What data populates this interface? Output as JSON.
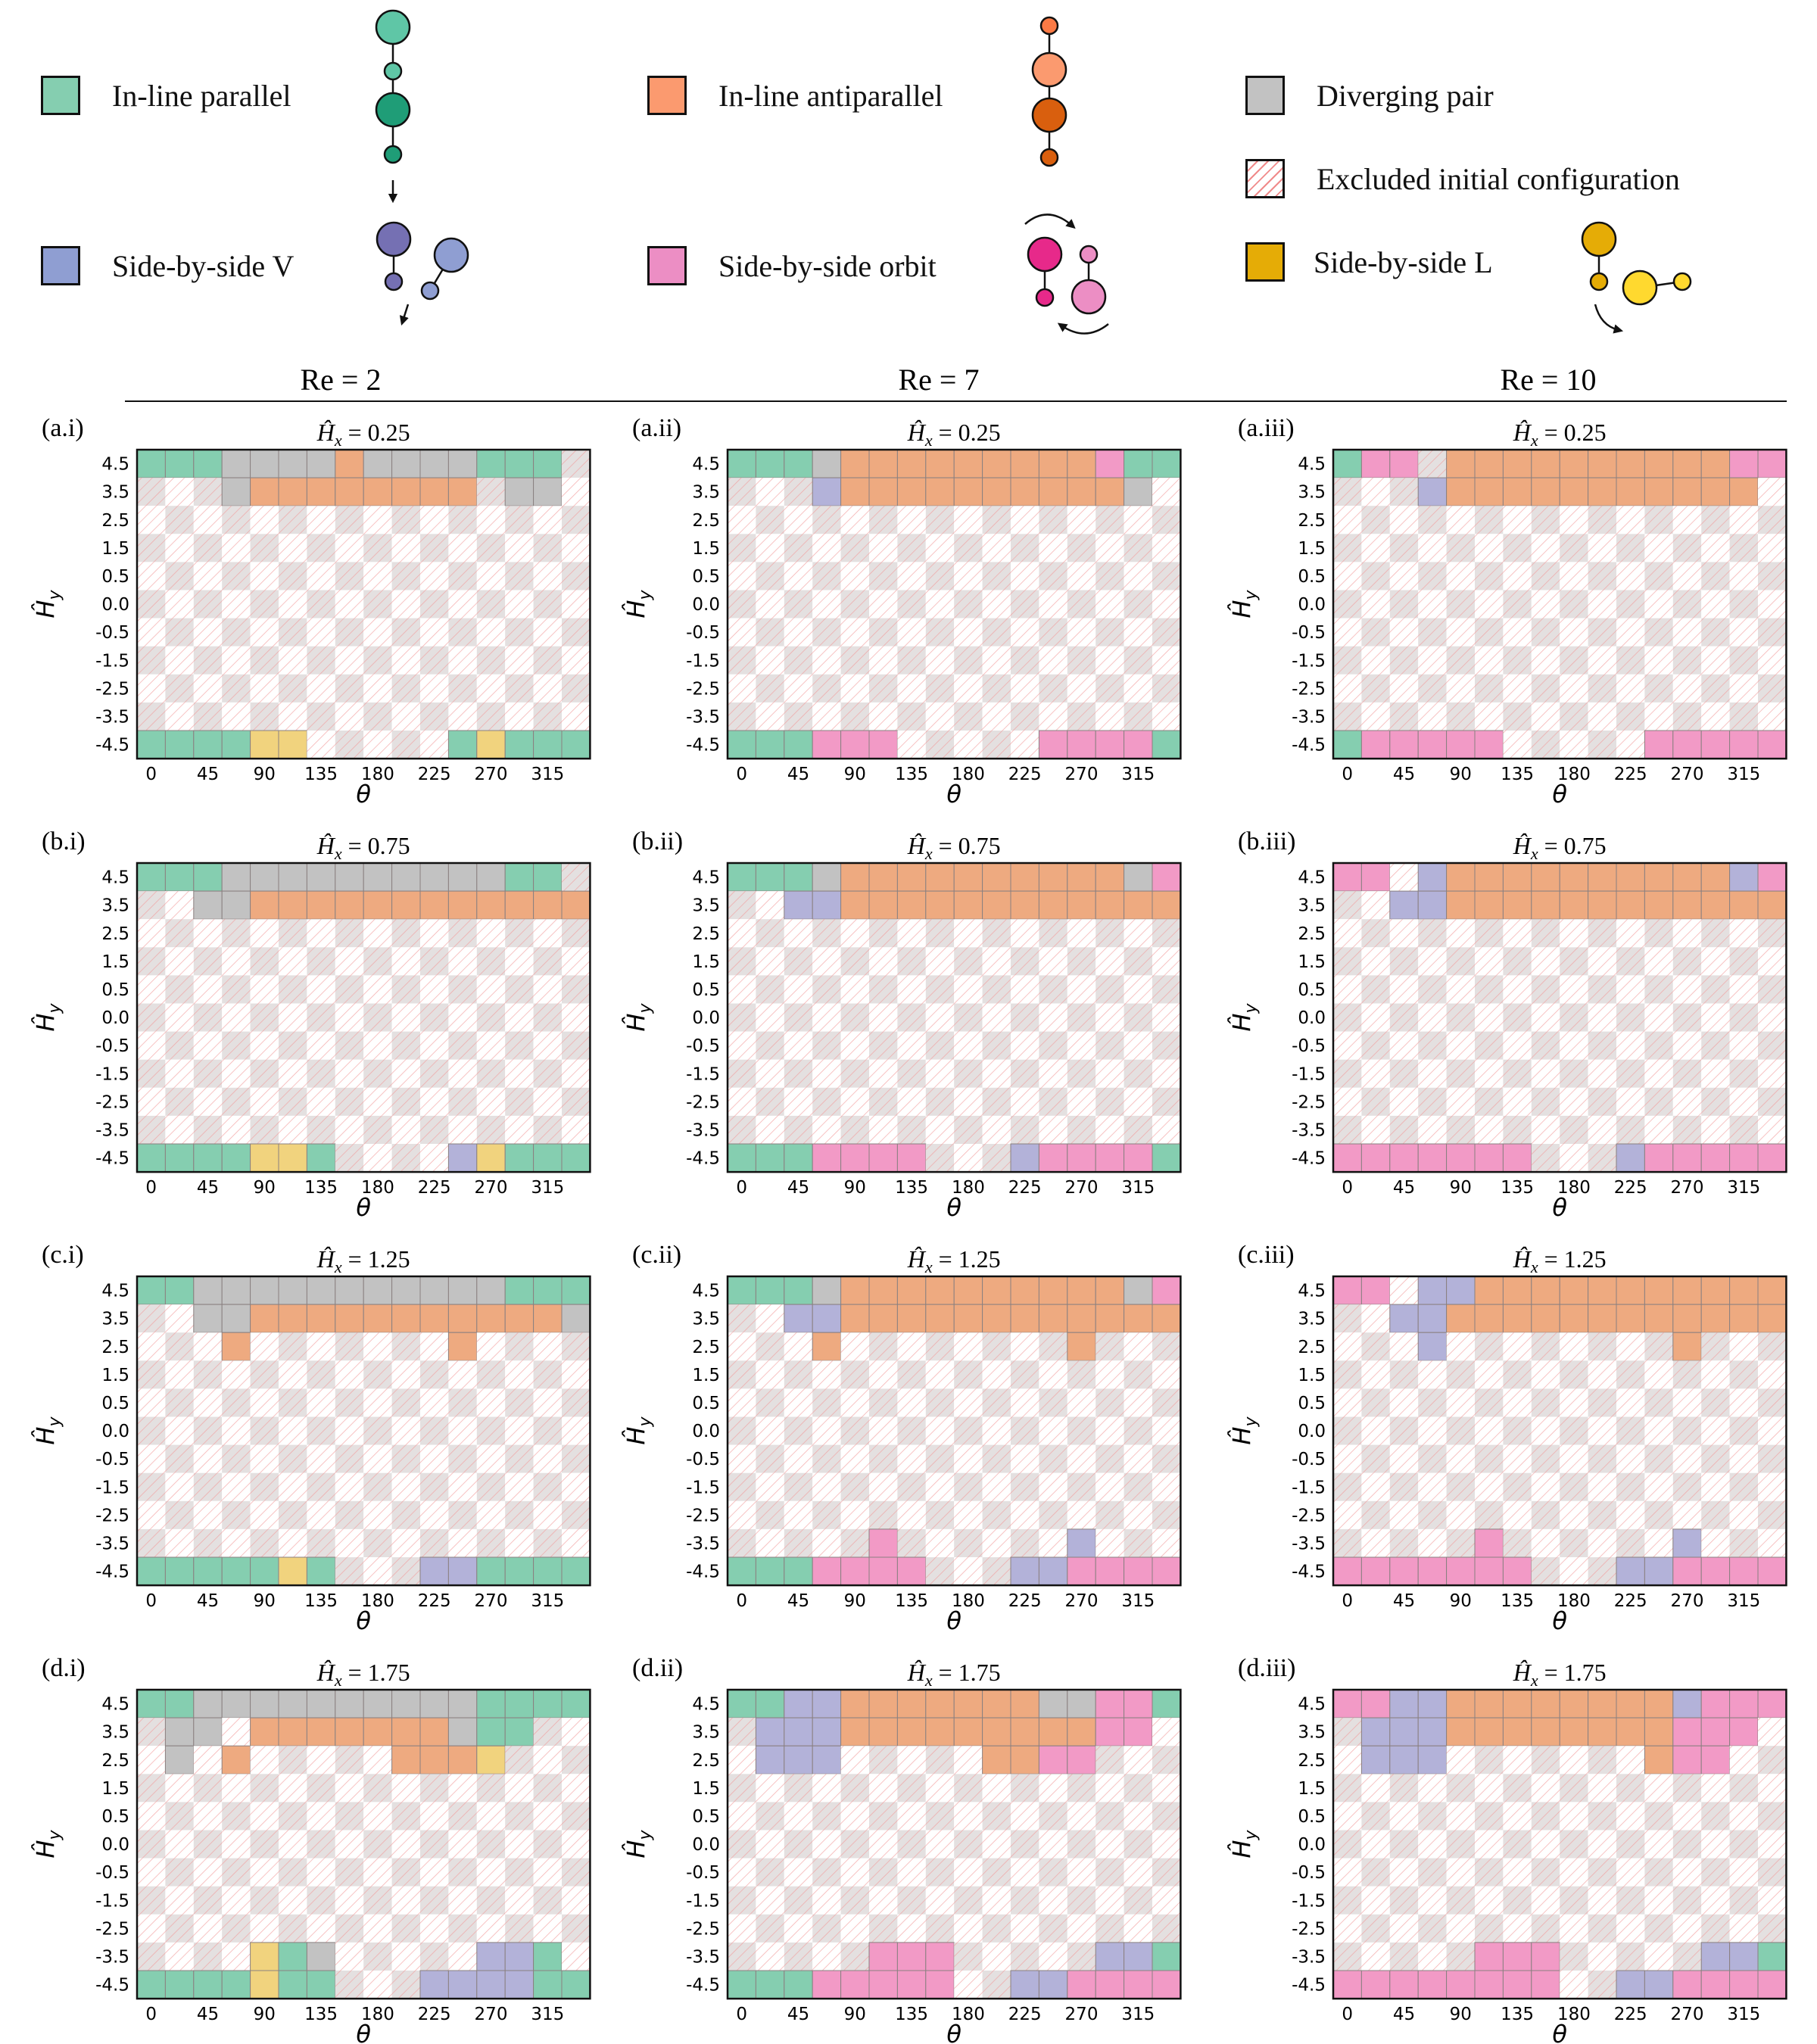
{
  "legend": [
    {
      "key": "P",
      "label": "In-line parallel",
      "color": "#85ceb0"
    },
    {
      "key": "A",
      "label": "In-line antiparallel",
      "color": "#eeaa80"
    },
    {
      "key": "D",
      "label": "Diverging pair",
      "color": "#c2c2c2"
    },
    {
      "key": "X",
      "label": "Excluded initial configuration",
      "color": "#f08a8a"
    },
    {
      "key": "V",
      "label": "Side-by-side V",
      "color": "#b3b2d9"
    },
    {
      "key": "O",
      "label": "Side-by-side orbit",
      "color": "#f29ac6"
    },
    {
      "key": "L",
      "label": "Side-by-side L",
      "color": "#f1d37e"
    }
  ],
  "columns": [
    "Re = 2",
    "Re = 7",
    "Re = 10"
  ],
  "row_titles": [
    "Ĥ_x = 0.25",
    "Ĥ_x = 0.75",
    "Ĥ_x = 1.25",
    "Ĥ_x = 1.75"
  ],
  "panel_labels": [
    [
      "(a.i)",
      "(a.ii)",
      "(a.iii)"
    ],
    [
      "(b.i)",
      "(b.ii)",
      "(b.iii)"
    ],
    [
      "(c.i)",
      "(c.ii)",
      "(c.iii)"
    ],
    [
      "(d.i)",
      "(d.ii)",
      "(d.iii)"
    ]
  ],
  "chart_data": {
    "type": "heatmap",
    "xlabel": "θ",
    "ylabel": "Ĥ_y",
    "x_tick_labels": [
      "0",
      "45",
      "90",
      "135",
      "180",
      "225",
      "270",
      "315"
    ],
    "y_tick_labels": [
      "4.5",
      "3.5",
      "2.5",
      "1.5",
      "0.5",
      "0.0",
      "-0.5",
      "-1.5",
      "-2.5",
      "-3.5",
      "-4.5"
    ],
    "codes": {
      "P": "In-line parallel",
      "A": "In-line antiparallel",
      "D": "Diverging pair",
      "V": "Side-by-side V",
      "O": "Side-by-side orbit",
      "L": "Side-by-side L",
      "X": "Excluded initial configuration"
    },
    "panels": [
      [
        [
          "PPPDDDDADDDDPPP",
          "XXXDAAAAAAAAXDDX",
          "",
          "",
          "",
          "",
          "",
          "",
          "",
          "",
          "PPPPLLXXXXXPLPPP"
        ],
        [
          "PPPDAAAAAAAAAOPP",
          "XXXVAAAAAAAAAADX",
          "",
          "",
          "",
          "",
          "",
          "",
          "",
          "",
          "PPPOOOXXXXXOOOOP"
        ],
        [
          "POOXAAAAAAAAAAOOO",
          "XXXVAAAAAAAAAAAX",
          "",
          "",
          "",
          "",
          "",
          "",
          "",
          "",
          "POOOOOXXXXXOOOOOO"
        ]
      ],
      [
        [
          "PPPDDDDDDDDDDPP",
          "XXDDAAAAAAAAAAAADP",
          "",
          "",
          "",
          "",
          "",
          "",
          "",
          "",
          "PPPPLLPXXXXVLPPP"
        ],
        [
          "PPPDAAAAAAAAAADOPP",
          "XXVVAAAAAAAAAAAAOX",
          "",
          "",
          "",
          "",
          "",
          "",
          "",
          "",
          "PPPOOOOXXXVOOOOP"
        ],
        [
          "OOXVAAAAAAAAAAVOOO",
          "XXVVAAAAAAAAAAAAOX",
          "",
          "",
          "",
          "",
          "",
          "",
          "",
          "",
          "OOOOOOOXXXVOOOOO"
        ]
      ],
      [
        [
          "PPDDDDDDDDDDDPPP",
          "XXDDAAAAAAAAAAADPPX",
          "XXXAXXXXXXXAXXXX",
          "",
          "",
          "",
          "",
          "",
          "",
          "X",
          "PPPPPLPXXXVVPPPP"
        ],
        [
          "PPPDAAAAAAAAAADOOX",
          "XXVVAAAAAAAAAAAAOOX",
          "XXXAXXXXXXXXAXXXX",
          "",
          "",
          "",
          "",
          "",
          "",
          "XXXXXOXXXXXXVX",
          "PPPOOOOXXXVVOOOOP"
        ],
        [
          "OOXVVAAAAAAAAAAAOOO",
          "XXVVAAAAAAAAAAAAOOX",
          "XXXVXXXXXXXXAXXXX",
          "",
          "",
          "",
          "",
          "",
          "",
          "XXXXXOXXXXXXVX",
          "OOOOOOOXXXVVOOOO"
        ]
      ],
      [
        [
          "PPDDDDDDDDDDPPPPP",
          "XDDXAAAAAAADPPXX",
          "XDXAXXXXXAAALXXX",
          "",
          "",
          "",
          "",
          "",
          "",
          "XXXXLPDXXXXXVVP",
          "PPPPLPPXXXVVVVPP"
        ],
        [
          "PPVVAAAAAAADDOOPP",
          "XVVVAAAAAAAAAOOXX",
          "XVVVXXXXXAAOOXXX",
          "",
          "",
          "",
          "",
          "",
          "",
          "XXXXXOOOXXXXXVVP",
          "PPPOOOOOXXVVOOOOP"
        ],
        [
          "OOVVAAAAAAAAVOOOO",
          "XVVVAAAAAAAAOOOXX",
          "XVVVXXXXXXXAOOXXX",
          "",
          "",
          "",
          "",
          "",
          "",
          "XXXXXOOOXXXXXVVP",
          "OOOOOOOOXXVVOOOOP"
        ]
      ]
    ]
  }
}
